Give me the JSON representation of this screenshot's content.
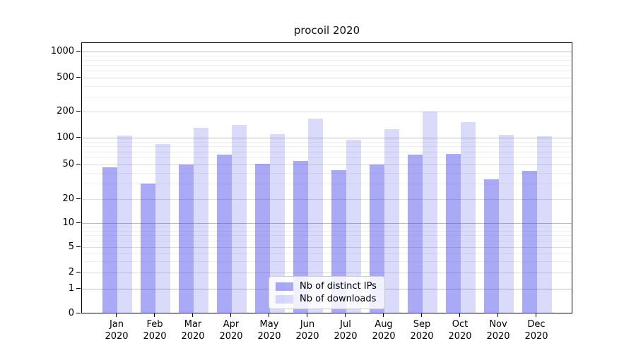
{
  "chart_data": {
    "type": "bar",
    "title": "procoil 2020",
    "categories": [
      "Jan",
      "Feb",
      "Mar",
      "Apr",
      "May",
      "Jun",
      "Jul",
      "Aug",
      "Sep",
      "Oct",
      "Nov",
      "Dec"
    ],
    "category_year": "2020",
    "series": [
      {
        "name": "Nb of distinct IPs",
        "fill": "rgba(60,60,235,0.44)",
        "color_hex_approx": "#a7a7f5",
        "values": [
          46,
          30,
          50,
          65,
          51,
          55,
          43,
          50,
          64,
          66,
          34,
          42
        ]
      },
      {
        "name": "Nb of downloads",
        "fill": "rgba(60,60,235,0.19)",
        "color_hex_approx": "#d9d9fa",
        "values": [
          105,
          85,
          131,
          140,
          110,
          165,
          94,
          126,
          199,
          150,
          108,
          104
        ]
      }
    ],
    "yticks": [
      0,
      1,
      2,
      5,
      10,
      20,
      50,
      100,
      200,
      500,
      1000
    ],
    "ylim": [
      0,
      1000
    ],
    "yscale": "symlog",
    "grid": true,
    "legend_position": "lower center",
    "xlabel": "",
    "ylabel": ""
  }
}
